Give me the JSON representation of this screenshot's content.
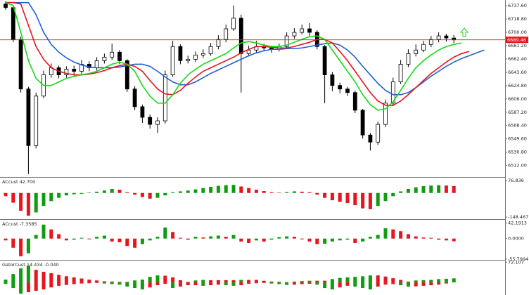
{
  "chart_data": [
    {
      "type": "candlestick",
      "open": [
        6740,
        6735,
        6690,
        6620,
        6540,
        6610,
        6640,
        6650,
        6640,
        6648,
        6645,
        6655,
        6650,
        6660,
        6665,
        6672,
        6660,
        6620,
        6595,
        6580,
        6570,
        6575,
        6640,
        6680,
        6660,
        6662,
        6668,
        6670,
        6680,
        6690,
        6705,
        6720,
        6670,
        6675,
        6680,
        6678,
        6676,
        6680,
        6695,
        6700,
        6705,
        6700,
        6680,
        6640,
        6625,
        6620,
        6615,
        6590,
        6555,
        6545,
        6570,
        6600,
        6630,
        6655,
        6670,
        6675,
        6683,
        6690,
        6695,
        6692
      ],
      "high": [
        6744,
        6738,
        6694,
        6623,
        6615,
        6646,
        6656,
        6653,
        6652,
        6653,
        6661,
        6659,
        6665,
        6670,
        6684,
        6675,
        6662,
        6624,
        6598,
        6584,
        6580,
        6646,
        6688,
        6683,
        6667,
        6673,
        6676,
        6685,
        6696,
        6711,
        6738,
        6725,
        6681,
        6688,
        6684,
        6681,
        6684,
        6700,
        6706,
        6711,
        6713,
        6703,
        6682,
        6644,
        6629,
        6623,
        6618,
        6592,
        6558,
        6574,
        6605,
        6636,
        6661,
        6676,
        6683,
        6688,
        6695,
        6700,
        6698,
        6696
      ],
      "low": [
        6732,
        6686,
        6615,
        6500,
        6536,
        6607,
        6636,
        6635,
        6636,
        6639,
        6641,
        6645,
        6646,
        6656,
        6661,
        6655,
        6616,
        6590,
        6572,
        6564,
        6558,
        6571,
        6637,
        6655,
        6656,
        6658,
        6664,
        6667,
        6676,
        6686,
        6702,
        6615,
        6666,
        6671,
        6674,
        6671,
        6673,
        6677,
        6691,
        6697,
        6695,
        6676,
        6600,
        6617,
        6614,
        6610,
        6586,
        6550,
        6533,
        6541,
        6566,
        6596,
        6627,
        6651,
        6666,
        6672,
        6679,
        6686,
        6687,
        6685
      ],
      "close": [
        6735,
        6690,
        6620,
        6540,
        6610,
        6640,
        6650,
        6640,
        6648,
        6645,
        6655,
        6650,
        6660,
        6665,
        6672,
        6660,
        6620,
        6595,
        6580,
        6570,
        6575,
        6640,
        6680,
        6660,
        6662,
        6668,
        6670,
        6680,
        6690,
        6705,
        6720,
        6670,
        6675,
        6680,
        6678,
        6676,
        6680,
        6695,
        6700,
        6705,
        6700,
        6680,
        6640,
        6625,
        6620,
        6615,
        6590,
        6555,
        6545,
        6570,
        6600,
        6630,
        6655,
        6670,
        6675,
        6683,
        6690,
        6695,
        6692,
        6689.46
      ],
      "up_color": "#ffffff",
      "down_color": "#000000",
      "series": [
        {
          "color": "#1f5fd6",
          "values": [
            6742,
            6742,
            6742,
            6742,
            6725,
            6700,
            6683,
            6672,
            6664,
            6658,
            6654,
            6651,
            6650,
            6650,
            6650,
            6651,
            6653,
            6655,
            6655,
            6652,
            6645,
            6637,
            6630,
            6626,
            6626,
            6630,
            6636,
            6642,
            6647,
            6652,
            6657,
            6662,
            6667,
            6671,
            6674,
            6676,
            6676,
            6677,
            6677,
            6678,
            6680,
            6682,
            6684,
            6685,
            6682,
            6675,
            6665,
            6652,
            6640,
            6628,
            6618,
            6612,
            6612,
            6615,
            6622,
            6630,
            6638,
            6645,
            6652,
            6658,
            6663,
            6667,
            6671,
            6675
          ]
        },
        {
          "color": "#e8141e",
          "values": [
            6742,
            6742,
            6740,
            6710,
            6680,
            6662,
            6650,
            6645,
            6642,
            6640,
            6640,
            6641,
            6643,
            6646,
            6650,
            6653,
            6655,
            6652,
            6645,
            6632,
            6620,
            6613,
            6612,
            6618,
            6628,
            6637,
            6645,
            6650,
            6655,
            6660,
            6665,
            6671,
            6676,
            6680,
            6680,
            6679,
            6678,
            6678,
            6680,
            6683,
            6686,
            6690,
            6690,
            6685,
            6673,
            6660,
            6645,
            6630,
            6615,
            6603,
            6597,
            6597,
            6603,
            6612,
            6622,
            6632,
            6642,
            6650,
            6658,
            6665,
            6670,
            6673
          ]
        },
        {
          "color": "#16d916",
          "values": [
            6742,
            6738,
            6700,
            6660,
            6635,
            6625,
            6625,
            6630,
            6635,
            6638,
            6640,
            6642,
            6645,
            6650,
            6655,
            6658,
            6655,
            6645,
            6625,
            6610,
            6600,
            6600,
            6612,
            6628,
            6640,
            6648,
            6655,
            6660,
            6665,
            6670,
            6678,
            6685,
            6687,
            6685,
            6682,
            6680,
            6680,
            6682,
            6686,
            6690,
            6694,
            6695,
            6690,
            6675,
            6660,
            6645,
            6630,
            6612,
            6598,
            6590,
            6592,
            6602,
            6618,
            6635,
            6650,
            6660,
            6668,
            6675,
            6680,
            6683,
            6685
          ]
        }
      ],
      "price_line": 6689.46,
      "price_line_color": "#e8141e",
      "ylim": [
        6495.7,
        6745.7
      ],
      "yticks": [
        {
          "value": 6737.6,
          "label": "6737.60"
        },
        {
          "value": 6718.8,
          "label": "6718.80"
        },
        {
          "value": 6700,
          "label": "6700.00"
        },
        {
          "value": 6681.2,
          "label": "6681.20"
        },
        {
          "value": 6662.4,
          "label": "6662.40"
        },
        {
          "value": 6643.6,
          "label": "6643.60"
        },
        {
          "value": 6624.8,
          "label": "6624.80"
        },
        {
          "value": 6606,
          "label": "6606.00"
        },
        {
          "value": 6587.2,
          "label": "6587.20"
        },
        {
          "value": 6568.4,
          "label": "6568.40"
        },
        {
          "value": 6549.6,
          "label": "6549.60"
        },
        {
          "value": 6530.8,
          "label": "6530.80"
        },
        {
          "value": 6512,
          "label": "6512.00"
        }
      ]
    },
    {
      "type": "histogram",
      "title": "ACcust 42.700",
      "up_color": "#0f9d0f",
      "down_color": "#e8141e",
      "values": [
        -20,
        -60,
        -110,
        -140,
        -120,
        -80,
        -50,
        -30,
        -15,
        -8,
        -5,
        3,
        8,
        15,
        25,
        20,
        5,
        -10,
        -25,
        -35,
        -30,
        -15,
        5,
        10,
        15,
        22,
        30,
        38,
        44,
        48,
        50,
        40,
        30,
        20,
        12,
        5,
        3,
        6,
        10,
        8,
        5,
        -10,
        -30,
        -45,
        -55,
        -62,
        -75,
        -95,
        -100,
        -80,
        -50,
        -20,
        10,
        25,
        35,
        42,
        46,
        48,
        46,
        42.7
      ],
      "ylim": [
        -161.5,
        94.2
      ],
      "yticks": [
        76.836,
        -148.467
      ]
    },
    {
      "type": "histogram",
      "title": "ACcust -7.3585",
      "up_color": "#0f9d0f",
      "down_color": "#e8141e",
      "values": [
        -5,
        -25,
        -48,
        -40,
        10,
        38,
        25,
        12,
        -5,
        -3,
        2,
        -2,
        5,
        8,
        -8,
        -10,
        -20,
        -25,
        -15,
        -5,
        5,
        30,
        18,
        2,
        -3,
        5,
        3,
        6,
        8,
        5,
        10,
        -8,
        -12,
        -5,
        -8,
        -3,
        4,
        6,
        5,
        -2,
        -8,
        -15,
        -14,
        -8,
        -5,
        -3,
        -12,
        -8,
        5,
        10,
        28,
        25,
        20,
        12,
        6,
        3,
        2,
        -3,
        -5,
        -7.3585
      ],
      "ylim": [
        -58,
        51
      ],
      "yticks": [
        42.1913,
        {
          "value": 0,
          "label": "0.0000"
        },
        -55.7994
      ]
    },
    {
      "type": "gator",
      "title": "GatorCust 14.434 -0.040",
      "up_color": "#0f9d0f",
      "down_color": "#e8141e",
      "series": [
        {
          "values": [
            10,
            30,
            50,
            60,
            45,
            38,
            33,
            27,
            22,
            18,
            14,
            10,
            7,
            4,
            3,
            2,
            2,
            7,
            10,
            20,
            25,
            24,
            18,
            8,
            2,
            7,
            9,
            8,
            8,
            8,
            8,
            9,
            9,
            9,
            6,
            3,
            2,
            1,
            3,
            5,
            6,
            6,
            6,
            12,
            16,
            18,
            20,
            22,
            25,
            25,
            21,
            15,
            9,
            3,
            7,
            8,
            9,
            12,
            13,
            14.434
          ]
        },
        {
          "values": [
            -5,
            -20,
            -40,
            -35,
            -30,
            -25,
            -18,
            -12,
            -9,
            -6,
            -4,
            -3,
            -2,
            -4,
            -6,
            -8,
            -15,
            -20,
            -25,
            -18,
            -10,
            -5,
            -20,
            -15,
            -10,
            -10,
            -12,
            -10,
            -8,
            -10,
            -12,
            -10,
            -5,
            -3,
            -2,
            -4,
            -6,
            -9,
            -8,
            -6,
            -5,
            -8,
            -20,
            -25,
            -18,
            -12,
            -15,
            -20,
            -25,
            -15,
            -8,
            -6,
            -10,
            -15,
            -14,
            -12,
            -10,
            -8,
            -4,
            -0.04
          ]
        }
      ],
      "ylim": [
        -45,
        78
      ],
      "yticks": [
        72.107
      ]
    }
  ]
}
